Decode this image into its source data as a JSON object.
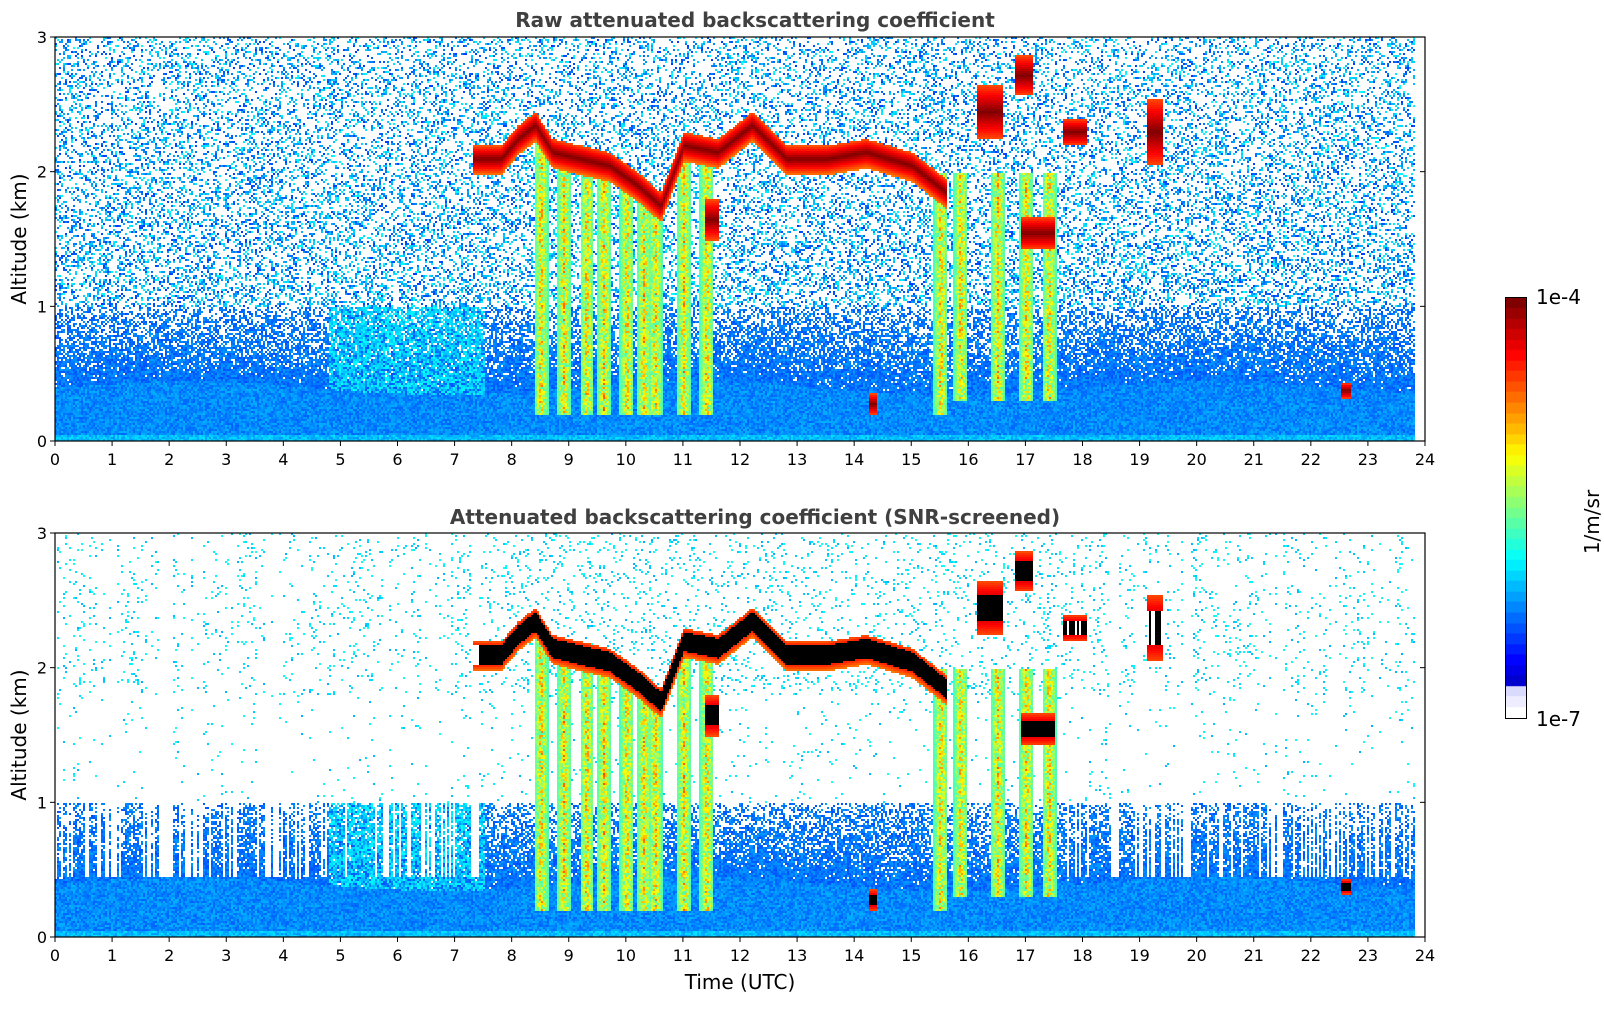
{
  "chart_data": [
    {
      "type": "heatmap",
      "title": "Raw attenuated backscattering coefficient",
      "xlabel": "",
      "ylabel": "Altitude (km)",
      "xlim": [
        0,
        24
      ],
      "ylim": [
        0,
        3
      ],
      "x_ticks": [
        "0",
        "1",
        "2",
        "3",
        "4",
        "5",
        "6",
        "7",
        "8",
        "9",
        "10",
        "11",
        "12",
        "13",
        "14",
        "15",
        "16",
        "17",
        "18",
        "19",
        "20",
        "21",
        "22",
        "23",
        "24"
      ],
      "y_ticks": [
        "0",
        "1",
        "2",
        "3"
      ],
      "screened": false
    },
    {
      "type": "heatmap",
      "title": "Attenuated backscattering coefficient (SNR-screened)",
      "xlabel": "Time (UTC)",
      "ylabel": "Altitude (km)",
      "xlim": [
        0,
        24
      ],
      "ylim": [
        0,
        3
      ],
      "x_ticks": [
        "0",
        "1",
        "2",
        "3",
        "4",
        "5",
        "6",
        "7",
        "8",
        "9",
        "10",
        "11",
        "12",
        "13",
        "14",
        "15",
        "16",
        "17",
        "18",
        "19",
        "20",
        "21",
        "22",
        "23",
        "24"
      ],
      "y_ticks": [
        "0",
        "1",
        "2",
        "3"
      ],
      "screened": true
    }
  ],
  "colorbar": {
    "max_label": "1e-4",
    "min_label": "1e-7",
    "unit": "1/m/sr",
    "colormap": "jet",
    "scale": "log"
  },
  "features": {
    "cloud_layer": [
      {
        "t": 7.3,
        "h": 2.2
      },
      {
        "t": 7.8,
        "h": 2.2
      },
      {
        "t": 8.1,
        "h": 2.35
      },
      {
        "t": 8.4,
        "h": 2.45
      },
      {
        "t": 8.7,
        "h": 2.25
      },
      {
        "t": 9.2,
        "h": 2.2
      },
      {
        "t": 9.7,
        "h": 2.15
      },
      {
        "t": 10.2,
        "h": 2.0
      },
      {
        "t": 10.6,
        "h": 1.85
      },
      {
        "t": 11.0,
        "h": 2.3
      },
      {
        "t": 11.6,
        "h": 2.25
      },
      {
        "t": 12.2,
        "h": 2.45
      },
      {
        "t": 12.8,
        "h": 2.2
      },
      {
        "t": 13.5,
        "h": 2.2
      },
      {
        "t": 14.2,
        "h": 2.25
      },
      {
        "t": 15.0,
        "h": 2.15
      },
      {
        "t": 15.6,
        "h": 1.95
      }
    ],
    "patches": [
      {
        "t": 16.35,
        "h": 2.45,
        "w": 0.45,
        "d": 0.2
      },
      {
        "t": 16.95,
        "h": 2.72,
        "w": 0.3,
        "d": 0.15
      },
      {
        "t": 17.2,
        "h": 1.55,
        "w": 0.6,
        "d": 0.12
      },
      {
        "t": 17.85,
        "h": 2.3,
        "w": 0.4,
        "d": 0.1
      },
      {
        "t": 19.25,
        "h": 2.3,
        "w": 0.3,
        "d": 0.25
      },
      {
        "t": 11.5,
        "h": 1.65,
        "w": 0.25,
        "d": 0.15
      },
      {
        "t": 14.3,
        "h": 0.28,
        "w": 0.15,
        "d": 0.08
      },
      {
        "t": 22.6,
        "h": 0.38,
        "w": 0.2,
        "d": 0.06
      }
    ],
    "boundary_layer_top_km": 0.4,
    "noise_floor_km": 1.0
  }
}
